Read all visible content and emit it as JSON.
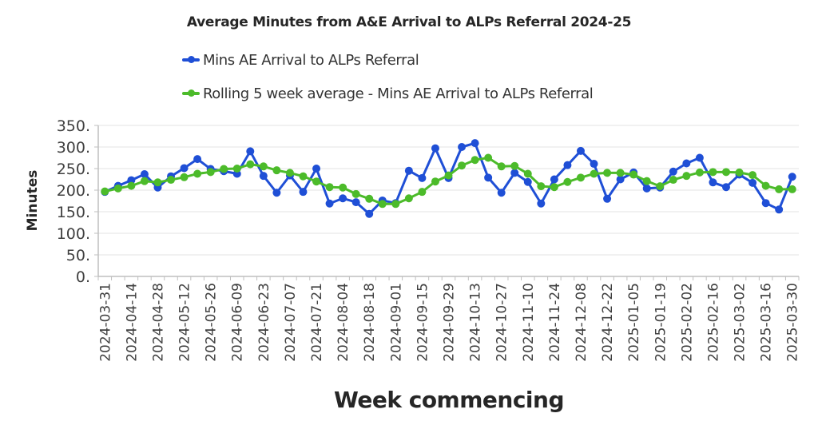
{
  "chart_data": {
    "type": "line",
    "title": "Average Minutes from A&E Arrival to ALPs Referral 2024-25",
    "xlabel": "Week commencing",
    "ylabel": "Minutes",
    "ylim": [
      0,
      350
    ],
    "yticks": [
      "0.",
      "50.",
      "100.",
      "150.",
      "200.",
      "250.",
      "300.",
      "350."
    ],
    "grid": true,
    "legend_position": "top",
    "x": [
      "2024-03-31",
      "2024-04-07",
      "2024-04-14",
      "2024-04-21",
      "2024-04-28",
      "2024-05-05",
      "2024-05-12",
      "2024-05-19",
      "2024-05-26",
      "2024-06-02",
      "2024-06-09",
      "2024-06-16",
      "2024-06-23",
      "2024-06-30",
      "2024-07-07",
      "2024-07-14",
      "2024-07-21",
      "2024-07-28",
      "2024-08-04",
      "2024-08-11",
      "2024-08-18",
      "2024-08-25",
      "2024-09-01",
      "2024-09-08",
      "2024-09-15",
      "2024-09-22",
      "2024-09-29",
      "2024-10-06",
      "2024-10-13",
      "2024-10-20",
      "2024-10-27",
      "2024-11-03",
      "2024-11-10",
      "2024-11-17",
      "2024-11-24",
      "2024-12-01",
      "2024-12-08",
      "2024-12-15",
      "2024-12-22",
      "2024-12-29",
      "2025-01-05",
      "2025-01-12",
      "2025-01-19",
      "2025-01-26",
      "2025-02-02",
      "2025-02-09",
      "2025-02-16",
      "2025-02-23",
      "2025-03-02",
      "2025-03-09",
      "2025-03-16",
      "2025-03-23",
      "2025-03-30"
    ],
    "tick_labels": [
      "2024-03-31",
      "2024-04-14",
      "2024-04-28",
      "2024-05-12",
      "2024-05-26",
      "2024-06-09",
      "2024-06-23",
      "2024-07-07",
      "2024-07-21",
      "2024-08-04",
      "2024-08-18",
      "2024-09-01",
      "2024-09-15",
      "2024-09-29",
      "2024-10-13",
      "2024-10-27",
      "2024-11-10",
      "2024-11-24",
      "2024-12-08",
      "2024-12-22",
      "2025-01-05",
      "2025-01-19",
      "2025-02-02",
      "2025-02-16",
      "2025-03-02",
      "2025-03-16",
      "2025-03-30"
    ],
    "series": [
      {
        "name": "Mins AE Arrival to ALPs Referral",
        "color": "#1f4fd6",
        "values": [
          196,
          210,
          223,
          237,
          206,
          232,
          251,
          272,
          249,
          244,
          238,
          290,
          233,
          194,
          234,
          196,
          250,
          169,
          181,
          172,
          145,
          176,
          170,
          245,
          228,
          297,
          228,
          300,
          309,
          229,
          194,
          240,
          219,
          169,
          225,
          258,
          291,
          261,
          180,
          225,
          241,
          204,
          206,
          243,
          262,
          275,
          218,
          207,
          236,
          217,
          170,
          155,
          231
        ]
      },
      {
        "name": "Rolling 5 week average - Mins AE Arrival to ALPs Referral",
        "color": "#4cbb2a",
        "values": [
          197,
          204,
          210,
          221,
          218,
          224,
          230,
          238,
          242,
          249,
          250,
          260,
          255,
          246,
          240,
          232,
          220,
          207,
          206,
          191,
          180,
          168,
          168,
          181,
          196,
          220,
          234,
          257,
          270,
          275,
          255,
          256,
          238,
          209,
          207,
          219,
          229,
          238,
          240,
          240,
          236,
          221,
          209,
          224,
          233,
          241,
          242,
          242,
          241,
          235,
          210,
          202,
          202
        ]
      }
    ]
  }
}
